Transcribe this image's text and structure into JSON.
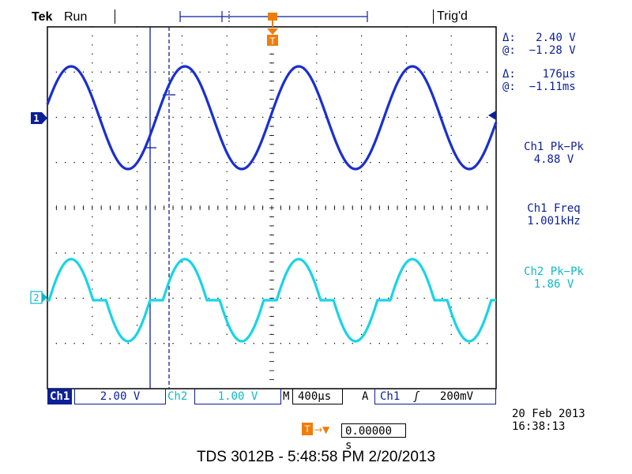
{
  "header": {
    "brand": "Tek",
    "acq_state": "Run",
    "trigger_status": "Trig'd"
  },
  "cursors": {
    "amplitude_delta_label": "Δ:",
    "amplitude_delta": "2.40 V",
    "amplitude_at_label": "@:",
    "amplitude_at": "−1.28 V",
    "time_delta_label": "Δ:",
    "time_delta": "176µs",
    "time_at_label": "@:",
    "time_at": "−1.11ms"
  },
  "measurements": [
    {
      "label": "Ch1 Pk−Pk",
      "value": "4.88 V",
      "color": "#0c1f9a"
    },
    {
      "label": "Ch1 Freq",
      "value": "1.001kHz",
      "color": "#0c1f9a"
    },
    {
      "label": "Ch2 Pk−Pk",
      "value": "1.86 V",
      "color": "#0fb8c8"
    }
  ],
  "channel_markers": {
    "ch1": "1",
    "ch2": "2"
  },
  "trigger_marker": "T",
  "settings": {
    "ch1_label": "Ch1",
    "ch1_scale": "2.00 V",
    "ch2_label": "Ch2",
    "ch2_scale": "1.00 V",
    "timebase_label": "M",
    "timebase": "400µs",
    "trigger_mode": "A",
    "trigger_source": "Ch1",
    "trigger_slope": "ʃ",
    "trigger_level": "200mV"
  },
  "datetime": {
    "date": "20 Feb  2013",
    "time": "16:38:13"
  },
  "trigger_position": "0.00000 s",
  "caption": "TDS 3012B - 5:48:58 PM   2/20/2013",
  "colors": {
    "ch1": "#0c1f9a",
    "ch2": "#0fb8c8",
    "trigger": "#f07c0a",
    "grid": "#000000"
  }
}
